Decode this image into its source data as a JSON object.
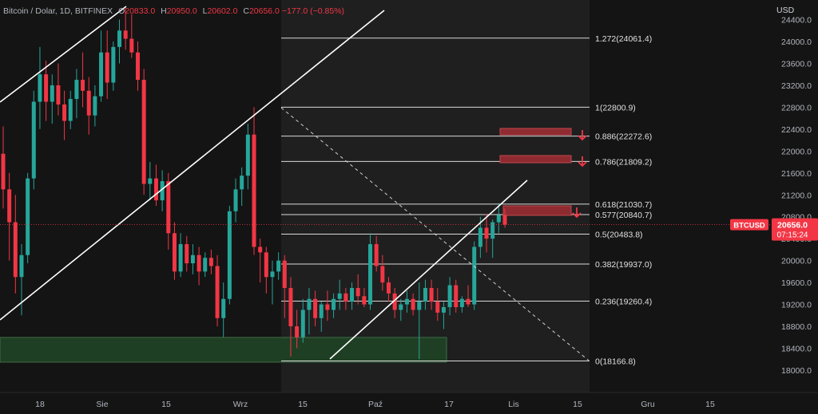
{
  "header": {
    "symbol": "Bitcoin / Dolar, 1D, BITFINEX",
    "open_label": "O",
    "open": "20833.0",
    "high_label": "H",
    "high": "20950.0",
    "low_label": "L",
    "low": "20602.0",
    "close_label": "C",
    "close": "20656.0",
    "change": "−177.0 (−0.85%)"
  },
  "colors": {
    "background": "#141414",
    "bull": "#26a69a",
    "bear": "#f23645",
    "fib_line": "#d9d9d9",
    "trendline": "#ffffff",
    "price_tag": "#f23645",
    "support_zone": "#1f3f24",
    "resistance_box": "#8e2b30",
    "axis_text": "#b2b5be"
  },
  "price_axis": {
    "currency": "USD",
    "ticks": [
      "24400.0",
      "24000.0",
      "23600.0",
      "23200.0",
      "22800.0",
      "22400.0",
      "22000.0",
      "21600.0",
      "21200.0",
      "20800.0",
      "20400.0",
      "20000.0",
      "19600.0",
      "19200.0",
      "18800.0",
      "18400.0",
      "18000.0"
    ]
  },
  "current_price": {
    "symbol": "BTCUSD",
    "price": "20656.0",
    "countdown": "07:15:24",
    "value": 20656.0
  },
  "time_axis": {
    "labels": [
      "18",
      "Sie",
      "15",
      "Wrz",
      "15",
      "Paź",
      "17",
      "Lis",
      "15",
      "Gru",
      "15"
    ]
  },
  "fib_levels": [
    {
      "ratio": 1.272,
      "price": 24061.4,
      "label": "1.272(24061.4)"
    },
    {
      "ratio": 1,
      "price": 22800.9,
      "label": "1(22800.9)"
    },
    {
      "ratio": 0.886,
      "price": 22272.6,
      "label": "0.886(22272.6)"
    },
    {
      "ratio": 0.786,
      "price": 21809.2,
      "label": "0.786(21809.2)"
    },
    {
      "ratio": 0.618,
      "price": 21030.7,
      "label": "0.618(21030.7)"
    },
    {
      "ratio": 0.577,
      "price": 20840.7,
      "label": "0.577(20840.7)"
    },
    {
      "ratio": 0.5,
      "price": 20483.8,
      "label": "0.5(20483.8)"
    },
    {
      "ratio": 0.382,
      "price": 19937.0,
      "label": "0.382(19937.0)"
    },
    {
      "ratio": 0.236,
      "price": 19260.4,
      "label": "0.236(19260.4)"
    },
    {
      "ratio": 0,
      "price": 18166.8,
      "label": "0(18166.8)"
    }
  ],
  "chart_data": {
    "type": "candlestick",
    "title": "Bitcoin / Dolar, 1D, BITFINEX",
    "ylim": [
      17950,
      24550
    ],
    "y_scale": "linear",
    "grid": false,
    "candles": [
      {
        "o": 21950,
        "h": 22450,
        "l": 20950,
        "c": 21300
      },
      {
        "o": 21300,
        "h": 21600,
        "l": 20000,
        "c": 20700
      },
      {
        "o": 20700,
        "h": 21200,
        "l": 19400,
        "c": 19700
      },
      {
        "o": 19700,
        "h": 20300,
        "l": 19000,
        "c": 20100
      },
      {
        "o": 20100,
        "h": 21600,
        "l": 19950,
        "c": 21500
      },
      {
        "o": 21500,
        "h": 23100,
        "l": 21300,
        "c": 22900
      },
      {
        "o": 22900,
        "h": 23900,
        "l": 22400,
        "c": 23400
      },
      {
        "o": 23400,
        "h": 23650,
        "l": 22550,
        "c": 22900
      },
      {
        "o": 22900,
        "h": 23400,
        "l": 22500,
        "c": 23200
      },
      {
        "o": 23200,
        "h": 23600,
        "l": 22650,
        "c": 22850
      },
      {
        "o": 22850,
        "h": 23100,
        "l": 22200,
        "c": 22550
      },
      {
        "o": 22550,
        "h": 23100,
        "l": 22400,
        "c": 22950
      },
      {
        "o": 22950,
        "h": 23500,
        "l": 22600,
        "c": 23300
      },
      {
        "o": 23300,
        "h": 23800,
        "l": 22800,
        "c": 23100
      },
      {
        "o": 23100,
        "h": 23350,
        "l": 22300,
        "c": 22650
      },
      {
        "o": 22650,
        "h": 23200,
        "l": 22450,
        "c": 23000
      },
      {
        "o": 23000,
        "h": 24200,
        "l": 22900,
        "c": 23800
      },
      {
        "o": 23800,
        "h": 24200,
        "l": 22950,
        "c": 23250
      },
      {
        "o": 23250,
        "h": 24000,
        "l": 23100,
        "c": 23900
      },
      {
        "o": 23900,
        "h": 24400,
        "l": 23600,
        "c": 24200
      },
      {
        "o": 24200,
        "h": 24600,
        "l": 23850,
        "c": 24050
      },
      {
        "o": 24050,
        "h": 24500,
        "l": 23700,
        "c": 23800
      },
      {
        "o": 23800,
        "h": 24000,
        "l": 23100,
        "c": 23300
      },
      {
        "o": 23300,
        "h": 23500,
        "l": 21200,
        "c": 21400
      },
      {
        "o": 21400,
        "h": 21800,
        "l": 21100,
        "c": 21500
      },
      {
        "o": 21500,
        "h": 21750,
        "l": 21000,
        "c": 21100
      },
      {
        "o": 21100,
        "h": 21650,
        "l": 20900,
        "c": 21450
      },
      {
        "o": 21450,
        "h": 21600,
        "l": 20200,
        "c": 20500
      },
      {
        "o": 20500,
        "h": 20700,
        "l": 19650,
        "c": 19800
      },
      {
        "o": 19800,
        "h": 20500,
        "l": 19700,
        "c": 20300
      },
      {
        "o": 20300,
        "h": 20450,
        "l": 19800,
        "c": 19950
      },
      {
        "o": 19950,
        "h": 20300,
        "l": 19750,
        "c": 20100
      },
      {
        "o": 20100,
        "h": 20250,
        "l": 19550,
        "c": 19800
      },
      {
        "o": 19800,
        "h": 20150,
        "l": 19700,
        "c": 20050
      },
      {
        "o": 20050,
        "h": 20200,
        "l": 19750,
        "c": 19900
      },
      {
        "o": 19900,
        "h": 20100,
        "l": 18800,
        "c": 18950
      },
      {
        "o": 18950,
        "h": 19600,
        "l": 18600,
        "c": 19300
      },
      {
        "o": 19300,
        "h": 21000,
        "l": 19200,
        "c": 20900
      },
      {
        "o": 20900,
        "h": 21500,
        "l": 20700,
        "c": 21300
      },
      {
        "o": 21300,
        "h": 21700,
        "l": 21000,
        "c": 21550
      },
      {
        "o": 21550,
        "h": 22500,
        "l": 21300,
        "c": 22300
      },
      {
        "o": 22300,
        "h": 22800,
        "l": 20100,
        "c": 20250
      },
      {
        "o": 20250,
        "h": 20400,
        "l": 19600,
        "c": 20150
      },
      {
        "o": 20150,
        "h": 20250,
        "l": 19400,
        "c": 19700
      },
      {
        "o": 19700,
        "h": 20000,
        "l": 19200,
        "c": 19800
      },
      {
        "o": 19800,
        "h": 20150,
        "l": 19650,
        "c": 20000
      },
      {
        "o": 20000,
        "h": 20100,
        "l": 18950,
        "c": 19500
      },
      {
        "o": 19500,
        "h": 19700,
        "l": 18250,
        "c": 18800
      },
      {
        "o": 18800,
        "h": 19100,
        "l": 18400,
        "c": 18600
      },
      {
        "o": 18600,
        "h": 19300,
        "l": 18500,
        "c": 19100
      },
      {
        "o": 19100,
        "h": 19500,
        "l": 18650,
        "c": 19300
      },
      {
        "o": 19300,
        "h": 19450,
        "l": 18800,
        "c": 18950
      },
      {
        "o": 18950,
        "h": 19250,
        "l": 18700,
        "c": 19200
      },
      {
        "o": 19200,
        "h": 19450,
        "l": 18900,
        "c": 19100
      },
      {
        "o": 19100,
        "h": 19400,
        "l": 18950,
        "c": 19300
      },
      {
        "o": 19300,
        "h": 19650,
        "l": 19100,
        "c": 19400
      },
      {
        "o": 19400,
        "h": 19500,
        "l": 19100,
        "c": 19250
      },
      {
        "o": 19250,
        "h": 19600,
        "l": 19100,
        "c": 19500
      },
      {
        "o": 19500,
        "h": 19750,
        "l": 19200,
        "c": 19350
      },
      {
        "o": 19350,
        "h": 19500,
        "l": 19150,
        "c": 19200
      },
      {
        "o": 19200,
        "h": 20500,
        "l": 19100,
        "c": 20300
      },
      {
        "o": 20300,
        "h": 20450,
        "l": 19800,
        "c": 19900
      },
      {
        "o": 19900,
        "h": 20100,
        "l": 19450,
        "c": 19600
      },
      {
        "o": 19600,
        "h": 19700,
        "l": 19250,
        "c": 19400
      },
      {
        "o": 19400,
        "h": 19500,
        "l": 18950,
        "c": 19100
      },
      {
        "o": 19100,
        "h": 19300,
        "l": 18900,
        "c": 19200
      },
      {
        "o": 19200,
        "h": 19450,
        "l": 19050,
        "c": 19300
      },
      {
        "o": 19300,
        "h": 19400,
        "l": 19000,
        "c": 19100
      },
      {
        "o": 19100,
        "h": 19600,
        "l": 18200,
        "c": 19250
      },
      {
        "o": 19250,
        "h": 19650,
        "l": 19100,
        "c": 19500
      },
      {
        "o": 19500,
        "h": 19650,
        "l": 19100,
        "c": 19250
      },
      {
        "o": 19250,
        "h": 19500,
        "l": 18900,
        "c": 19050
      },
      {
        "o": 19050,
        "h": 19250,
        "l": 18750,
        "c": 19150
      },
      {
        "o": 19150,
        "h": 19700,
        "l": 19000,
        "c": 19550
      },
      {
        "o": 19550,
        "h": 19650,
        "l": 19050,
        "c": 19150
      },
      {
        "o": 19150,
        "h": 19350,
        "l": 19050,
        "c": 19300
      },
      {
        "o": 19300,
        "h": 19550,
        "l": 19150,
        "c": 19200
      },
      {
        "o": 19200,
        "h": 20350,
        "l": 19100,
        "c": 20250
      },
      {
        "o": 20250,
        "h": 20800,
        "l": 20050,
        "c": 20600
      },
      {
        "o": 20600,
        "h": 20850,
        "l": 20150,
        "c": 20400
      },
      {
        "o": 20400,
        "h": 20750,
        "l": 20050,
        "c": 20700
      },
      {
        "o": 20700,
        "h": 21050,
        "l": 20500,
        "c": 20833
      },
      {
        "o": 20833,
        "h": 20950,
        "l": 20602,
        "c": 20656
      }
    ]
  }
}
